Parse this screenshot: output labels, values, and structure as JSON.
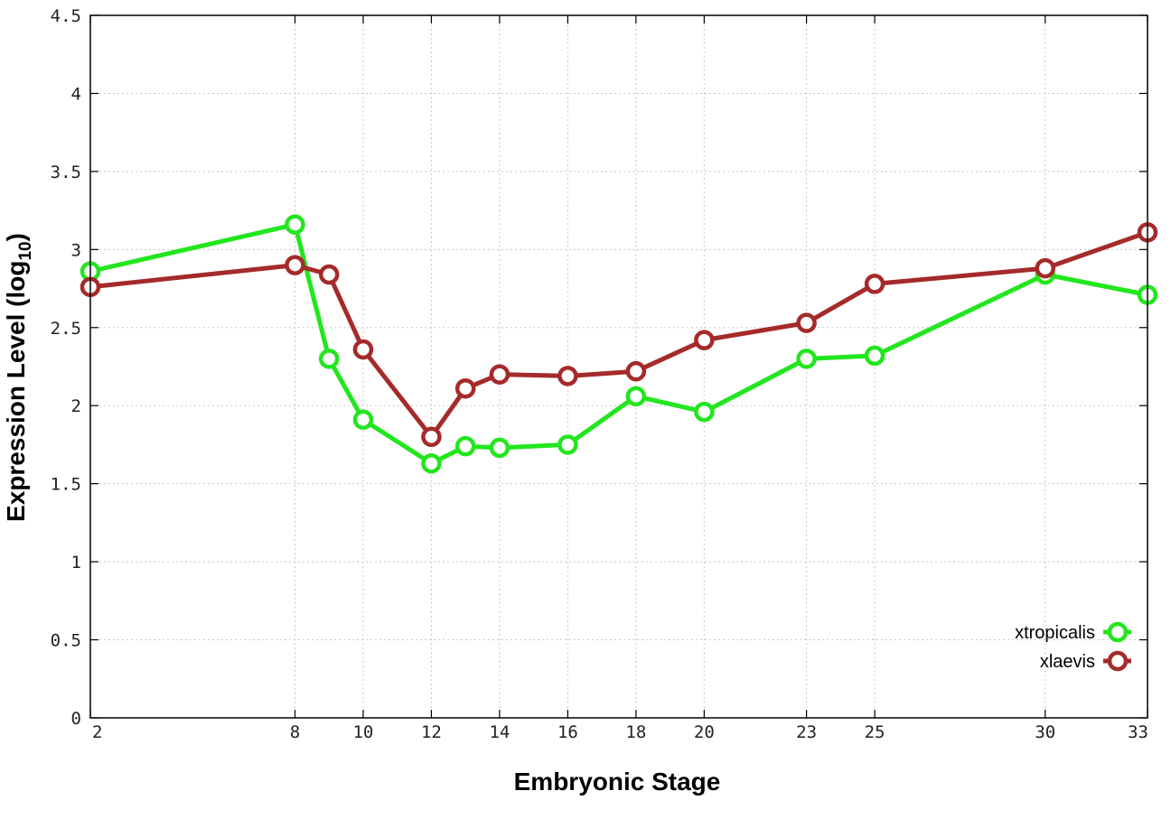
{
  "chart_data": {
    "type": "line",
    "xlabel": "Embryonic Stage",
    "ylabel_main": "Expression Level (log",
    "ylabel_sub": "10",
    "ylabel_close": ")",
    "xlim": [
      2,
      33
    ],
    "ylim": [
      0,
      4.5
    ],
    "x_ticks": [
      2,
      8,
      10,
      12,
      14,
      16,
      18,
      20,
      23,
      25,
      30,
      33
    ],
    "y_ticks": [
      0,
      0.5,
      1,
      1.5,
      2,
      2.5,
      3,
      3.5,
      4,
      4.5
    ],
    "y_tick_labels": [
      "0",
      "0.5",
      "1",
      "1.5",
      "2",
      "2.5",
      "3",
      "3.5",
      "4",
      "4.5"
    ],
    "grid": true,
    "legend_position": "bottom-right",
    "series": [
      {
        "name": "xtropicalis",
        "color": "#22e61e",
        "x": [
          2,
          8,
          9,
          10,
          12,
          13,
          14,
          16,
          18,
          20,
          23,
          25,
          30,
          33
        ],
        "y": [
          2.86,
          3.16,
          2.3,
          1.91,
          1.63,
          1.74,
          1.73,
          1.75,
          2.06,
          1.96,
          2.3,
          2.32,
          2.84,
          2.71
        ]
      },
      {
        "name": "xlaevis",
        "color": "#a52a2a",
        "x": [
          2,
          8,
          9,
          10,
          12,
          13,
          14,
          16,
          18,
          20,
          23,
          25,
          30,
          33
        ],
        "y": [
          2.76,
          2.9,
          2.84,
          2.36,
          1.8,
          2.11,
          2.2,
          2.19,
          2.22,
          2.42,
          2.53,
          2.78,
          2.88,
          3.11
        ]
      }
    ]
  }
}
